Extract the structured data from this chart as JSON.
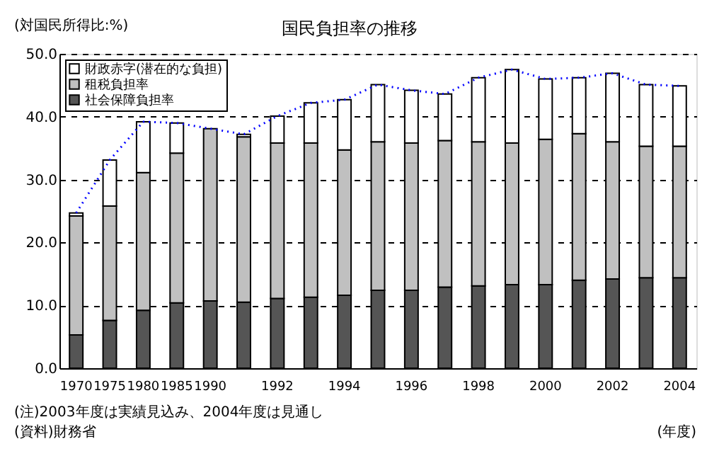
{
  "chart_data": {
    "type": "bar",
    "stacked": true,
    "title": "国民負担率の推移",
    "ylabel": "(対国民所得比:%)",
    "xlabel": "(年度)",
    "categories": [
      "1970",
      "1975",
      "1980",
      "1985",
      "1990",
      null,
      "1992",
      null,
      "1994",
      null,
      "1996",
      null,
      "1998",
      null,
      "2000",
      null,
      "2002",
      null,
      "2004"
    ],
    "series": [
      {
        "name": "社会保障負担率",
        "color": "#555555",
        "values": [
          5.3,
          7.6,
          9.2,
          10.4,
          10.7,
          10.5,
          11.1,
          11.3,
          11.6,
          12.4,
          12.4,
          12.9,
          13.1,
          13.3,
          13.3,
          14.0,
          14.2,
          14.4,
          14.4
        ]
      },
      {
        "name": "租税負担率",
        "color": "#c0c0c0",
        "values": [
          18.9,
          18.2,
          21.9,
          23.8,
          27.4,
          26.3,
          24.7,
          24.5,
          23.1,
          23.6,
          23.4,
          23.3,
          22.9,
          22.5,
          23.1,
          23.3,
          21.8,
          20.9,
          20.9
        ]
      },
      {
        "name": "財政赤字(潜在的な負担)",
        "color": "#ffffff",
        "values": [
          0.5,
          7.3,
          8.1,
          4.8,
          null,
          0.4,
          4.3,
          6.4,
          8.0,
          9.1,
          8.4,
          7.4,
          10.2,
          11.7,
          9.6,
          8.9,
          10.9,
          9.8,
          9.6
        ]
      },
      {
        "type": "line",
        "color": "#0000ff",
        "line_style": "dotted",
        "values": [
          24.7,
          33.1,
          39.2,
          39.0,
          38.1,
          37.2,
          40.1,
          42.2,
          42.7,
          45.1,
          44.2,
          43.6,
          46.2,
          47.5,
          46.0,
          46.2,
          46.9,
          45.1,
          44.9
        ]
      }
    ],
    "ylim": [
      0,
      50
    ],
    "yticks": [
      {
        "value": 0,
        "label": "0.0"
      },
      {
        "value": 10,
        "label": "10.0"
      },
      {
        "value": 20,
        "label": "20.0"
      },
      {
        "value": 30,
        "label": "30.0"
      },
      {
        "value": 40,
        "label": "40.0"
      },
      {
        "value": 50,
        "label": "50.0"
      }
    ],
    "grid": "y",
    "legend": "top left",
    "annotations": [
      "(注)2003年度は実績見込み、2004年度は見通し",
      "(資料)財務省"
    ]
  }
}
